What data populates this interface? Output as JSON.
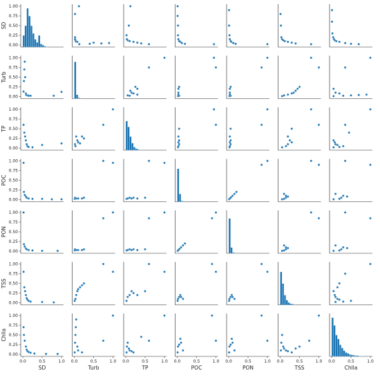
{
  "chart_data": {
    "type": "scatter",
    "subtype": "pairplot",
    "variables": [
      "SD",
      "Turb",
      "TP",
      "POC",
      "PON",
      "TSS",
      "Chlla"
    ],
    "axis_range": [
      0,
      1
    ],
    "tick_labels": [
      "0.00",
      "0.25",
      "0.50",
      "0.75",
      "1.00"
    ],
    "x_tick_labels": [
      "0.0",
      "0.5",
      "1.0"
    ],
    "x_tick_values": [
      0,
      0.5,
      1
    ],
    "y_tick_values": [
      0,
      0.25,
      0.5,
      0.75,
      1
    ],
    "color": "#1f77b4",
    "diagonal": "histogram",
    "histograms": {
      "SD": [
        0.3,
        0.55,
        1.0,
        0.8,
        0.55,
        0.35,
        0.2,
        0.12,
        0.3,
        0.08,
        0.05,
        0.02,
        0.01,
        0.0,
        0.0,
        0.0,
        0.0,
        0.0,
        0.0,
        0.01
      ],
      "Turb": [
        0.95,
        0.1,
        0.02,
        0.01,
        0.0,
        0.0,
        0.0,
        0.0,
        0.0,
        0.0,
        0.0,
        0.0,
        0.0,
        0.0,
        0.0,
        0.0,
        0.0,
        0.0,
        0.0,
        0.0
      ],
      "TP": [
        0.75,
        0.6,
        0.35,
        0.18,
        0.08,
        0.04,
        0.02,
        0.01,
        0.0,
        0.0,
        0.0,
        0.0,
        0.0,
        0.0,
        0.0,
        0.0,
        0.0,
        0.0,
        0.0,
        0.0
      ],
      "POC": [
        0.85,
        0.2,
        0.02,
        0.01,
        0.0,
        0.0,
        0.0,
        0.0,
        0.0,
        0.0,
        0.0,
        0.0,
        0.0,
        0.0,
        0.0,
        0.0,
        0.0,
        0.0,
        0.0,
        0.0
      ],
      "PON": [
        0.9,
        0.15,
        0.02,
        0.01,
        0.0,
        0.0,
        0.0,
        0.0,
        0.0,
        0.0,
        0.0,
        0.0,
        0.0,
        0.0,
        0.0,
        0.0,
        0.0,
        0.0,
        0.0,
        0.0
      ],
      "TSS": [
        0.85,
        0.55,
        0.25,
        0.12,
        0.06,
        0.03,
        0.02,
        0.01,
        0.0,
        0.0,
        0.0,
        0.0,
        0.0,
        0.0,
        0.0,
        0.0,
        0.0,
        0.0,
        0.0,
        0.0
      ],
      "Chlla": [
        1.0,
        0.8,
        0.55,
        0.45,
        0.3,
        0.22,
        0.15,
        0.1,
        0.08,
        0.05,
        0.04,
        0.03,
        0.02,
        0.02,
        0.01,
        0.01,
        0.0,
        0.01,
        0.0,
        0.01
      ]
    },
    "pairs": {
      "SD|Turb": [
        [
          0.02,
          0.13
        ],
        [
          0.03,
          0.4
        ],
        [
          0.04,
          0.7
        ],
        [
          0.05,
          0.9
        ],
        [
          0.06,
          0.5
        ],
        [
          0.08,
          0.08
        ],
        [
          0.09,
          0.04
        ],
        [
          0.12,
          0.03
        ],
        [
          0.15,
          0.02
        ],
        [
          0.2,
          0.02
        ],
        [
          0.8,
          0.02
        ],
        [
          1.0,
          0.12
        ]
      ],
      "SD|TP": [
        [
          0.02,
          0.6
        ],
        [
          0.04,
          0.4
        ],
        [
          0.06,
          0.3
        ],
        [
          0.08,
          0.2
        ],
        [
          0.1,
          0.1
        ],
        [
          0.12,
          0.05
        ],
        [
          0.15,
          0.03
        ],
        [
          0.25,
          0.02
        ],
        [
          0.5,
          0.08
        ],
        [
          1.0,
          0.12
        ]
      ],
      "SD|POC": [
        [
          0.02,
          0.95
        ],
        [
          0.03,
          0.2
        ],
        [
          0.05,
          0.12
        ],
        [
          0.08,
          0.08
        ],
        [
          0.1,
          0.05
        ],
        [
          0.15,
          0.03
        ],
        [
          0.25,
          0.02
        ],
        [
          0.5,
          0.02
        ],
        [
          0.75,
          0.01
        ],
        [
          1.0,
          0.01
        ]
      ],
      "SD|PON": [
        [
          0.02,
          1.0
        ],
        [
          0.03,
          0.18
        ],
        [
          0.05,
          0.12
        ],
        [
          0.08,
          0.07
        ],
        [
          0.1,
          0.05
        ],
        [
          0.15,
          0.03
        ],
        [
          0.25,
          0.02
        ],
        [
          0.5,
          0.01
        ],
        [
          0.9,
          0.01
        ]
      ],
      "SD|TSS": [
        [
          0.02,
          0.8
        ],
        [
          0.04,
          0.4
        ],
        [
          0.06,
          0.3
        ],
        [
          0.08,
          0.2
        ],
        [
          0.1,
          0.12
        ],
        [
          0.12,
          0.08
        ],
        [
          0.15,
          0.05
        ],
        [
          0.2,
          0.03
        ],
        [
          0.5,
          0.02
        ],
        [
          0.8,
          0.01
        ]
      ],
      "SD|Chlla": [
        [
          0.02,
          0.7
        ],
        [
          0.03,
          0.5
        ],
        [
          0.05,
          0.35
        ],
        [
          0.08,
          0.2
        ],
        [
          0.1,
          0.12
        ],
        [
          0.12,
          0.08
        ],
        [
          0.15,
          0.06
        ],
        [
          0.2,
          0.04
        ],
        [
          0.3,
          0.02
        ],
        [
          0.6,
          0.01
        ],
        [
          0.9,
          0.01
        ]
      ],
      "Turb|TP": [
        [
          0.02,
          0.1
        ],
        [
          0.03,
          0.05
        ],
        [
          0.05,
          0.3
        ],
        [
          0.08,
          0.2
        ],
        [
          0.1,
          0.15
        ],
        [
          0.15,
          0.12
        ],
        [
          0.2,
          0.3
        ],
        [
          0.25,
          0.25
        ],
        [
          0.75,
          0.6
        ],
        [
          1.0,
          1.0
        ]
      ],
      "Turb|POC": [
        [
          0.01,
          0.02
        ],
        [
          0.02,
          0.05
        ],
        [
          0.05,
          0.03
        ],
        [
          0.1,
          0.03
        ],
        [
          0.2,
          0.03
        ],
        [
          0.25,
          0.05
        ],
        [
          0.75,
          1.0
        ],
        [
          1.0,
          0.95
        ]
      ],
      "Turb|PON": [
        [
          0.01,
          0.02
        ],
        [
          0.02,
          0.05
        ],
        [
          0.05,
          0.03
        ],
        [
          0.1,
          0.03
        ],
        [
          0.2,
          0.03
        ],
        [
          0.25,
          0.05
        ],
        [
          0.75,
          0.85
        ],
        [
          1.0,
          1.0
        ]
      ],
      "Turb|TSS": [
        [
          0.01,
          0.05
        ],
        [
          0.03,
          0.1
        ],
        [
          0.05,
          0.2
        ],
        [
          0.08,
          0.3
        ],
        [
          0.1,
          0.35
        ],
        [
          0.15,
          0.4
        ],
        [
          0.2,
          0.45
        ],
        [
          0.25,
          0.5
        ],
        [
          0.75,
          1.0
        ],
        [
          1.0,
          0.8
        ]
      ],
      "Turb|Chlla": [
        [
          0.01,
          0.05
        ],
        [
          0.02,
          0.3
        ],
        [
          0.03,
          0.5
        ],
        [
          0.04,
          0.7
        ],
        [
          0.05,
          0.9
        ],
        [
          0.08,
          0.2
        ],
        [
          0.1,
          0.1
        ],
        [
          0.2,
          0.05
        ],
        [
          0.75,
          0.35
        ],
        [
          1.0,
          1.0
        ]
      ],
      "TP|POC": [
        [
          0.02,
          0.02
        ],
        [
          0.05,
          0.03
        ],
        [
          0.1,
          0.05
        ],
        [
          0.15,
          0.03
        ],
        [
          0.2,
          0.05
        ],
        [
          0.3,
          0.03
        ],
        [
          0.5,
          0.05
        ],
        [
          0.6,
          1.0
        ],
        [
          1.0,
          0.95
        ]
      ],
      "TP|PON": [
        [
          0.02,
          0.02
        ],
        [
          0.05,
          0.03
        ],
        [
          0.1,
          0.05
        ],
        [
          0.15,
          0.03
        ],
        [
          0.2,
          0.05
        ],
        [
          0.3,
          0.03
        ],
        [
          0.5,
          0.05
        ],
        [
          0.6,
          0.85
        ],
        [
          1.0,
          1.0
        ]
      ],
      "TP|TSS": [
        [
          0.02,
          0.05
        ],
        [
          0.05,
          0.15
        ],
        [
          0.1,
          0.2
        ],
        [
          0.15,
          0.3
        ],
        [
          0.2,
          0.25
        ],
        [
          0.3,
          0.2
        ],
        [
          0.5,
          0.3
        ],
        [
          0.6,
          1.0
        ],
        [
          1.0,
          0.8
        ]
      ],
      "TP|Chlla": [
        [
          0.02,
          0.05
        ],
        [
          0.03,
          0.2
        ],
        [
          0.05,
          0.3
        ],
        [
          0.08,
          0.15
        ],
        [
          0.1,
          0.1
        ],
        [
          0.15,
          0.08
        ],
        [
          0.2,
          0.05
        ],
        [
          0.4,
          0.45
        ],
        [
          0.6,
          0.35
        ],
        [
          1.0,
          1.0
        ]
      ],
      "POC|PON": [
        [
          0.01,
          0.01
        ],
        [
          0.03,
          0.03
        ],
        [
          0.06,
          0.06
        ],
        [
          0.1,
          0.1
        ],
        [
          0.15,
          0.15
        ],
        [
          0.2,
          0.2
        ],
        [
          0.9,
          0.85
        ],
        [
          1.0,
          1.0
        ]
      ],
      "POC|TSS": [
        [
          0.01,
          0.05
        ],
        [
          0.02,
          0.1
        ],
        [
          0.05,
          0.15
        ],
        [
          0.08,
          0.2
        ],
        [
          0.1,
          0.15
        ],
        [
          0.15,
          0.1
        ],
        [
          0.9,
          1.0
        ],
        [
          1.0,
          0.8
        ]
      ],
      "POC|Chlla": [
        [
          0.01,
          0.05
        ],
        [
          0.02,
          0.2
        ],
        [
          0.05,
          0.25
        ],
        [
          0.08,
          0.4
        ],
        [
          0.1,
          0.3
        ],
        [
          0.15,
          0.1
        ],
        [
          0.9,
          1.0
        ],
        [
          1.0,
          0.35
        ]
      ],
      "PON|TSS": [
        [
          0.01,
          0.05
        ],
        [
          0.02,
          0.1
        ],
        [
          0.05,
          0.15
        ],
        [
          0.08,
          0.2
        ],
        [
          0.1,
          0.15
        ],
        [
          0.15,
          0.1
        ],
        [
          0.85,
          1.0
        ],
        [
          1.0,
          0.8
        ]
      ],
      "PON|Chlla": [
        [
          0.01,
          0.05
        ],
        [
          0.02,
          0.2
        ],
        [
          0.05,
          0.25
        ],
        [
          0.08,
          0.4
        ],
        [
          0.1,
          0.3
        ],
        [
          0.15,
          0.1
        ],
        [
          0.85,
          1.0
        ],
        [
          1.0,
          0.35
        ]
      ],
      "TSS|Chlla": [
        [
          0.02,
          0.1
        ],
        [
          0.03,
          0.3
        ],
        [
          0.05,
          0.5
        ],
        [
          0.08,
          0.2
        ],
        [
          0.1,
          0.15
        ],
        [
          0.15,
          0.1
        ],
        [
          0.2,
          0.08
        ],
        [
          0.3,
          0.05
        ],
        [
          0.4,
          0.15
        ],
        [
          0.5,
          0.2
        ],
        [
          0.75,
          0.35
        ],
        [
          1.0,
          1.0
        ]
      ]
    }
  }
}
